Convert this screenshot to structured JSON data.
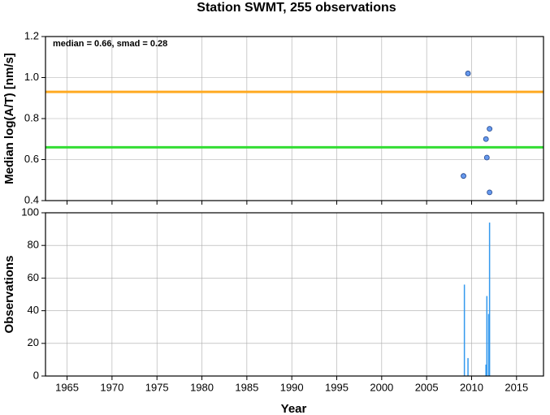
{
  "chart_data": [
    {
      "type": "scatter",
      "title": "Station SWMT, 255 observations",
      "ylabel": "Median log(A/T) [nm/s]",
      "annotation": "median = 0.66, smad = 0.28",
      "x": [
        2009.6,
        2009.1,
        2012.0,
        2011.6,
        2011.7,
        2012.0
      ],
      "values": [
        1.02,
        0.52,
        0.75,
        0.7,
        0.61,
        0.44
      ],
      "color": "#6699ee",
      "lines": [
        {
          "value": 0.66,
          "color": "#33dd33"
        },
        {
          "value": 0.93,
          "color": "#ffaa22"
        }
      ],
      "xlim": [
        1962.6,
        2018
      ],
      "xticks": [
        1965,
        1970,
        1975,
        1980,
        1985,
        1990,
        1995,
        2000,
        2005,
        2010,
        2015
      ],
      "ylim": [
        0.4,
        1.2
      ],
      "yticks": [
        0.4,
        0.6,
        0.8,
        {
          "value": 1,
          "label": "1.0"
        },
        1.2
      ],
      "grid": true
    },
    {
      "type": "bar",
      "ylabel": "Observations",
      "xlabel": "Year",
      "x": [
        2009.2,
        2009.6,
        2011.6,
        2011.7,
        2012.0,
        2011.9
      ],
      "values": [
        56,
        11,
        7,
        49,
        94,
        38
      ],
      "color": "#3399ee",
      "xlim": [
        1962.6,
        2018
      ],
      "xticks": [
        1965,
        1970,
        1975,
        1980,
        1985,
        1990,
        1995,
        2000,
        2005,
        2010,
        2015
      ],
      "ylim": [
        0,
        100
      ],
      "yticks": [
        0,
        20,
        40,
        60,
        80,
        100
      ],
      "grid": true
    }
  ]
}
